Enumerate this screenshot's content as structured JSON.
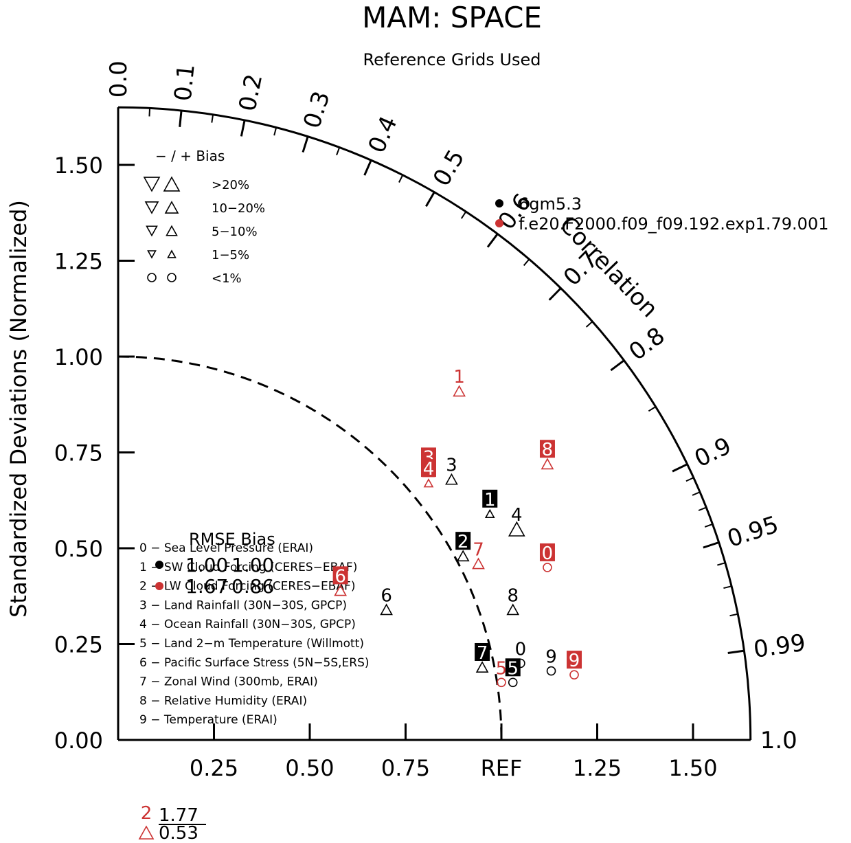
{
  "chart_data": {
    "type": "scatter",
    "title": "MAM: SPACE",
    "subtitle": "Reference Grids Used",
    "ylabel": "Standardized Deviations (Normalized)",
    "angular_label": "Correlation",
    "x_ref_label": "REF",
    "radial_max": 1.65,
    "y_ticks": [
      "0.00",
      "0.25",
      "0.50",
      "0.75",
      "1.00",
      "1.25",
      "1.50"
    ],
    "y_tick_values": [
      0,
      0.25,
      0.5,
      0.75,
      1.0,
      1.25,
      1.5
    ],
    "x_ticks": [
      "0.25",
      "0.50",
      "0.75",
      "REF",
      "1.25",
      "1.50"
    ],
    "x_tick_values": [
      0.25,
      0.5,
      0.75,
      1.0,
      1.25,
      1.5
    ],
    "corr_labels": [
      "0.0",
      "0.1",
      "0.2",
      "0.3",
      "0.4",
      "0.5",
      "0.6",
      "0.7",
      "0.8",
      "0.9",
      "0.95",
      "0.99",
      "1.0"
    ],
    "corr_values": [
      0.0,
      0.1,
      0.2,
      0.3,
      0.4,
      0.5,
      0.6,
      0.7,
      0.8,
      0.9,
      0.95,
      0.99,
      1.0
    ],
    "bias_legend": {
      "header": "− / +     Bias",
      "rows": [
        ">20%",
        "10−20%",
        "5−10%",
        "1−5%",
        "<1%"
      ]
    },
    "cases": [
      {
        "name": "6gm5.3",
        "color": "#000000"
      },
      {
        "name": "f.e20.F2000.f09_f09.192.exp1.79.001",
        "color": "#cc3333"
      }
    ],
    "variables": [
      "0 − Sea Level Pressure (ERAI)",
      "1 − SW Cloud Forcing (CERES−EBAF)",
      "2 − LW Cloud Forcing (CERES−EBAF)",
      "3 − Land Rainfall (30N−30S, GPCP)",
      "4 − Ocean Rainfall (30N−30S, GPCP)",
      "5 − Land 2−m Temperature (Willmott)",
      "6 − Pacific Surface Stress (5N−5S,ERS)",
      "7 − Zonal Wind (300mb, ERAI)",
      "8 − Relative Humidity (ERAI)",
      "9 − Temperature (ERAI)"
    ],
    "rmse_bias": {
      "header": "RMSE Bias",
      "rows": [
        {
          "rmse": "1.00",
          "bias": "1.00"
        },
        {
          "rmse": "1.67",
          "bias": "0.86"
        }
      ]
    },
    "points": [
      {
        "case": 0,
        "var": "0",
        "x": 1.05,
        "y": 0.2,
        "marker": "circle",
        "boxed": false
      },
      {
        "case": 0,
        "var": "1",
        "x": 0.97,
        "y": 0.59,
        "marker": "tri-up-s",
        "boxed": true
      },
      {
        "case": 0,
        "var": "2",
        "x": 0.9,
        "y": 0.48,
        "marker": "tri-up-m",
        "boxed": true
      },
      {
        "case": 0,
        "var": "3",
        "x": 0.87,
        "y": 0.68,
        "marker": "tri-up-m",
        "boxed": false
      },
      {
        "case": 0,
        "var": "4",
        "x": 1.04,
        "y": 0.55,
        "marker": "tri-up-l",
        "boxed": false
      },
      {
        "case": 0,
        "var": "5",
        "x": 1.03,
        "y": 0.15,
        "marker": "circle",
        "boxed": true
      },
      {
        "case": 0,
        "var": "6",
        "x": 0.7,
        "y": 0.34,
        "marker": "tri-up-m",
        "boxed": false
      },
      {
        "case": 0,
        "var": "7",
        "x": 0.95,
        "y": 0.19,
        "marker": "tri-up-m",
        "boxed": true
      },
      {
        "case": 0,
        "var": "8",
        "x": 1.03,
        "y": 0.34,
        "marker": "tri-up-m",
        "boxed": false
      },
      {
        "case": 0,
        "var": "9",
        "x": 1.13,
        "y": 0.18,
        "marker": "circle",
        "boxed": false
      },
      {
        "case": 1,
        "var": "0",
        "x": 1.12,
        "y": 0.45,
        "marker": "circle",
        "boxed": true
      },
      {
        "case": 1,
        "var": "1",
        "x": 0.89,
        "y": 0.91,
        "marker": "tri-up-m",
        "boxed": false
      },
      {
        "case": 1,
        "var": "2",
        "x": 0.07,
        "y": 0.19,
        "marker": "tri-up-l",
        "boxed": false,
        "outside": true,
        "label_rmse": "1.77",
        "label_bias": "0.53"
      },
      {
        "case": 1,
        "var": "3",
        "x": 0.81,
        "y": 0.7,
        "marker": "tri-up-m",
        "boxed": true
      },
      {
        "case": 1,
        "var": "4",
        "x": 0.81,
        "y": 0.67,
        "marker": "tri-up-s",
        "boxed": true
      },
      {
        "case": 1,
        "var": "5",
        "x": 1.0,
        "y": 0.15,
        "marker": "circle",
        "boxed": false
      },
      {
        "case": 1,
        "var": "6",
        "x": 0.58,
        "y": 0.39,
        "marker": "tri-up-m",
        "boxed": true
      },
      {
        "case": 1,
        "var": "7",
        "x": 0.94,
        "y": 0.46,
        "marker": "tri-up-m",
        "boxed": false
      },
      {
        "case": 1,
        "var": "8",
        "x": 1.12,
        "y": 0.72,
        "marker": "tri-up-m",
        "boxed": true
      },
      {
        "case": 1,
        "var": "9",
        "x": 1.19,
        "y": 0.17,
        "marker": "circle",
        "boxed": true
      }
    ]
  }
}
